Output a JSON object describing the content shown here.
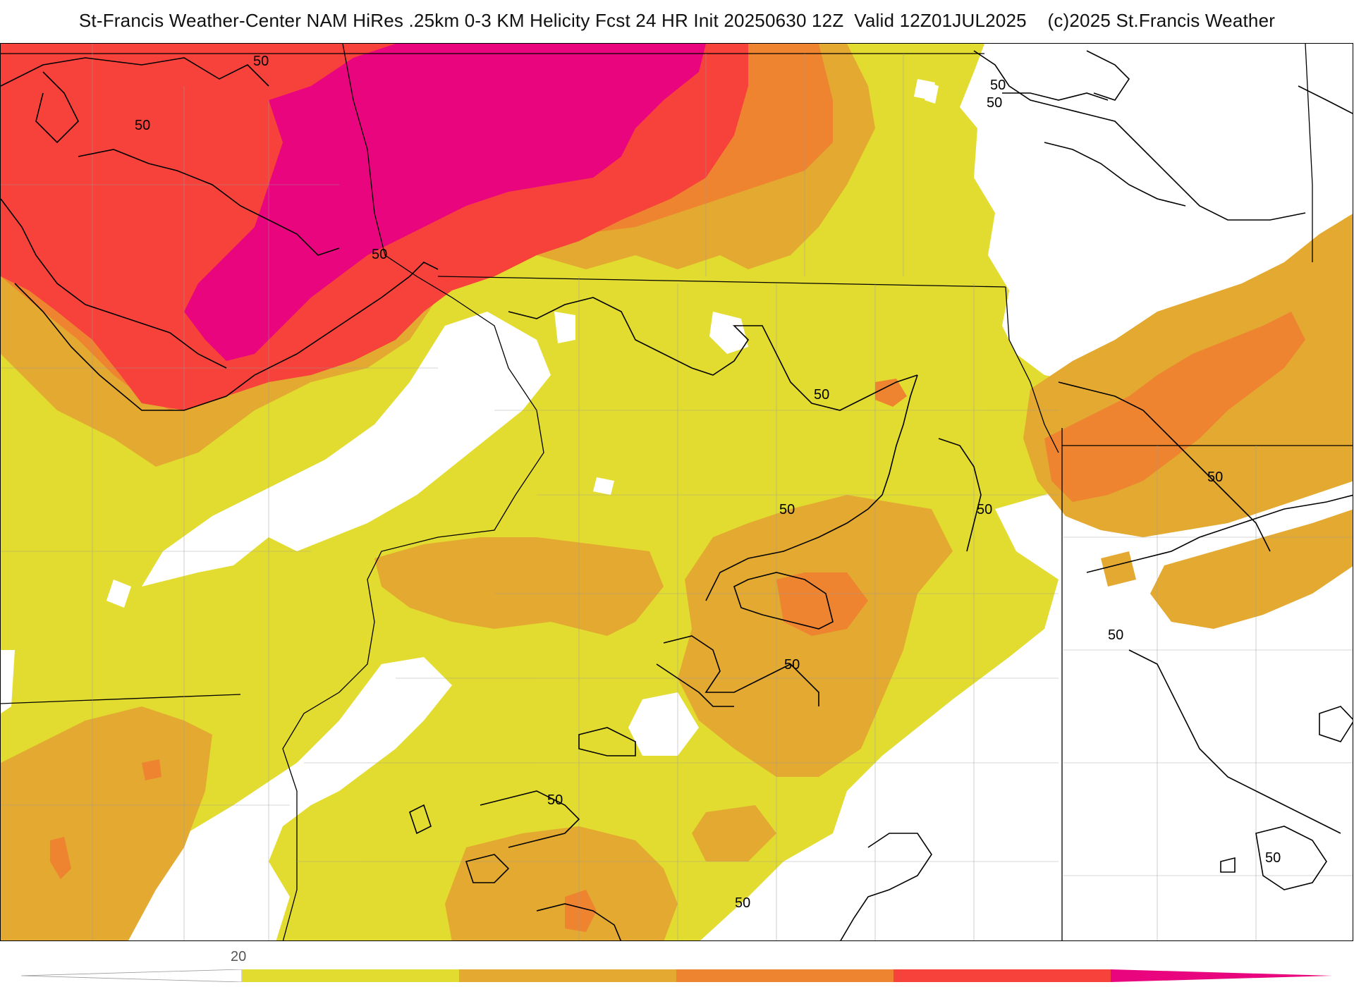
{
  "header": {
    "title": "St-Francis Weather-Center NAM HiRes .25km 0-3 KM Helicity Fcst 24 HR Init 20250630 12Z  Valid 12Z01JUL2025    (c)2025 St.Francis Weather"
  },
  "map": {
    "contour_value_label": "50",
    "contour_labels": [
      "50",
      "50",
      "50",
      "50",
      "50",
      "50",
      "50",
      "50",
      "50",
      "50",
      "50",
      "50",
      "50"
    ],
    "fill_colors": {
      "level_1": "#e3dc30",
      "level_2": "#e3a930",
      "level_3": "#ee8430",
      "level_4": "#f7423c",
      "level_5": "#e8057e"
    }
  },
  "colorbar": {
    "tick_label": "20",
    "segments": [
      "#e3dc30",
      "#e3a930",
      "#ee8430",
      "#f7423c",
      "#e8057e"
    ]
  }
}
